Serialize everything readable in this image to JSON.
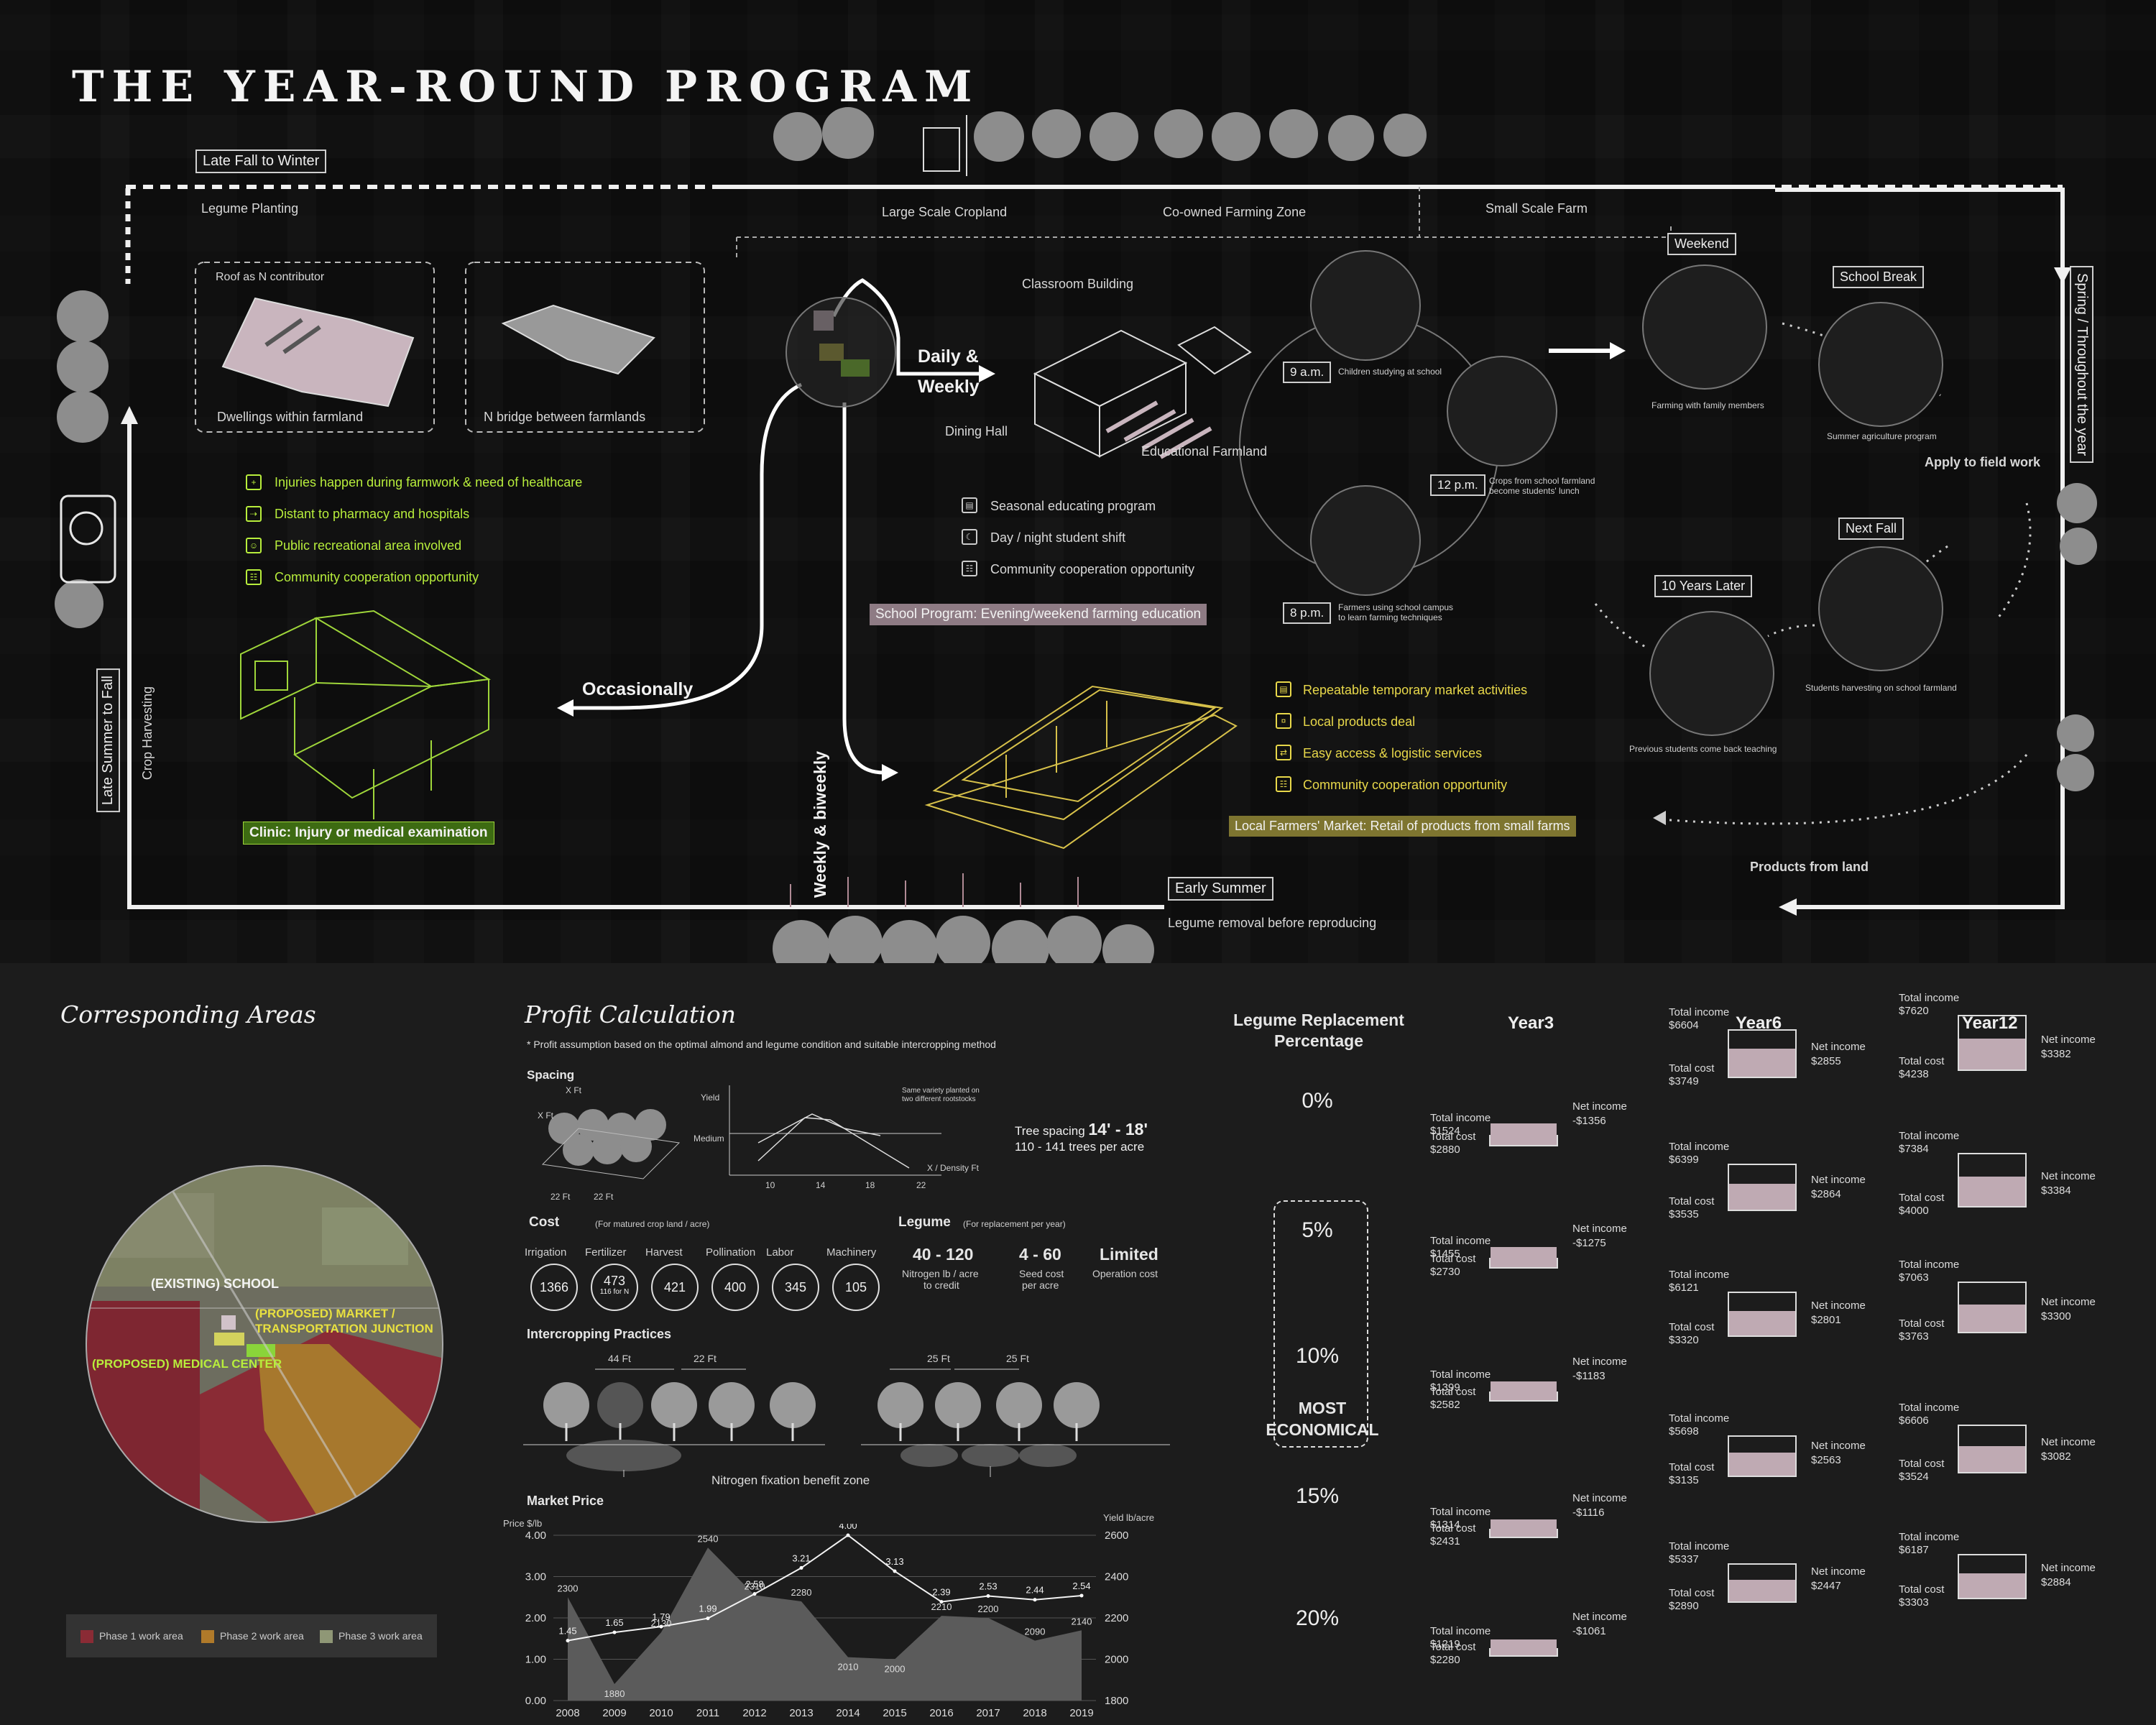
{
  "title": "THE YEAR-ROUND PROGRAM",
  "cycle": {
    "late_fall": "Late Fall to Winter",
    "legume_planting": "Legume Planting",
    "large_cropland": "Large Scale Cropland",
    "coowned": "Co-owned Farming Zone",
    "small_farm": "Small Scale Farm",
    "spring": "Spring / Throughout the year",
    "late_summer": "Late Summer to Fall",
    "crop_harvesting": "Crop Harvesting",
    "early_summer": "Early Summer",
    "legume_removal": "Legume removal before reproducing"
  },
  "roof": {
    "roof_n": "Roof as N contributor",
    "dwellings": "Dwellings within farmland",
    "bridge": "N bridge between farmlands"
  },
  "clinic": {
    "items": [
      "Injuries happen during farmwork & need of healthcare",
      "Distant to pharmacy and hospitals",
      "Public recreational area involved",
      "Community cooperation opportunity"
    ],
    "label": "Clinic: Injury or medical examination"
  },
  "hub": {
    "daily": "Daily &",
    "weekly": "Weekly",
    "occasionally": "Occasionally",
    "biweekly": "Weekly & biweekly"
  },
  "school": {
    "classroom": "Classroom Building",
    "dining": "Dining Hall",
    "edu_farm": "Educational Farmland",
    "items": [
      "Seasonal educating program",
      "Day / night student shift",
      "Community cooperation opportunity"
    ],
    "label": "School Program: Evening/weekend farming education"
  },
  "timeline": {
    "t9": "9 a.m.",
    "t9_desc": "Children studying at school",
    "t12": "12 p.m.",
    "t12_desc1": "Crops from school farmland",
    "t12_desc2": "become students' lunch",
    "t8": "8 p.m.",
    "t8_desc1": "Farmers using school campus",
    "t8_desc2": "to learn farming techniques"
  },
  "seasons": {
    "weekend": "Weekend",
    "weekend_desc": "Farming with family members",
    "school_break": "School Break",
    "school_break_desc": "Summer agriculture program",
    "apply": "Apply to field work",
    "next_fall": "Next Fall",
    "next_fall_desc": "Students harvesting on school farmland",
    "ten_years": "10 Years Later",
    "ten_years_desc": "Previous students come back teaching",
    "products": "Products from land"
  },
  "market": {
    "items": [
      "Repeatable temporary market activities",
      "Local products deal",
      "Easy access & logistic services",
      "Community cooperation opportunity"
    ],
    "label": "Local Farmers' Market: Retail of products from small farms"
  },
  "areas": {
    "title": "Corresponding Areas",
    "school": "(EXISTING) SCHOOL",
    "market1": "(PROPOSED) MARKET /",
    "market2": "TRANSPORTATION JUNCTION",
    "medical": "(PROPOSED) MEDICAL CENTER",
    "phases": [
      "Phase 1 work area",
      "Phase 2 work area",
      "Phase 3 work area"
    ],
    "phase_colors": [
      "#8a2b35",
      "#b07a2a",
      "#8f9776"
    ]
  },
  "profit": {
    "title": "Profit Calculation",
    "note": "* Profit assumption based on the optimal almond and legume condition and suitable intercropping method",
    "spacing": "Spacing",
    "xft": "X Ft",
    "ft22": "22 Ft",
    "yield": "Yield",
    "medium": "Medium",
    "same_variety1": "Same variety planted on",
    "same_variety2": "two different rootstocks",
    "xdensity": "X / Density   Ft",
    "xticks": [
      "10",
      "14",
      "18",
      "22"
    ],
    "tree_spacing_label": "Tree spacing",
    "tree_spacing_value": "14' - 18'",
    "trees_per_acre": "110 - 141 trees per acre",
    "cost": "Cost",
    "cost_note": "(For matured crop land / acre)",
    "cost_items": [
      {
        "name": "Irrigation",
        "value": "1366",
        "sub": ""
      },
      {
        "name": "Fertilizer",
        "value": "473",
        "sub": "116 for N"
      },
      {
        "name": "Harvest",
        "value": "421",
        "sub": ""
      },
      {
        "name": "Pollination",
        "value": "400",
        "sub": ""
      },
      {
        "name": "Labor",
        "value": "345",
        "sub": ""
      },
      {
        "name": "Machinery",
        "value": "105",
        "sub": ""
      }
    ],
    "legume": "Legume",
    "legume_note": "(For replacement per year)",
    "legume_items": [
      {
        "value": "40 - 120",
        "desc1": "Nitrogen lb / acre",
        "desc2": "to credit"
      },
      {
        "value": "4 - 60",
        "desc1": "Seed cost",
        "desc2": "per acre"
      },
      {
        "value": "Limited",
        "desc1": "Operation cost",
        "desc2": ""
      }
    ],
    "intercropping": "Intercropping Practices",
    "ft44": "44 Ft",
    "ft22b": "22 Ft",
    "ft25a": "25 Ft",
    "ft25b": "25 Ft",
    "nitrogen_zone": "Nitrogen fixation benefit zone",
    "market_price": "Market Price"
  },
  "chart_data": {
    "type": "area",
    "title": "Market Price",
    "x": [
      "2008",
      "2009",
      "2010",
      "2011",
      "2012",
      "2013",
      "2014",
      "2015",
      "2016",
      "2017",
      "2018",
      "2019"
    ],
    "ylabel": "Price $/lb",
    "y2label": "Yield lb/acre",
    "ylim": [
      0,
      4
    ],
    "y2lim": [
      1800,
      2600
    ],
    "yticks": [
      "4.00",
      "3.00",
      "2.00",
      "1.00",
      "0.00"
    ],
    "y2ticks": [
      "2600",
      "2400",
      "2200",
      "2000",
      "1800"
    ],
    "series": [
      {
        "values": [
          1.45,
          1.65,
          1.79,
          1.99,
          2.58,
          3.21,
          4.0,
          3.13,
          2.39,
          2.53,
          2.44,
          2.54
        ],
        "labels": [
          "1.45",
          "1.65",
          "1.79",
          "1.99",
          "2.58",
          "3.21",
          "4.00",
          "3.13",
          "2.39",
          "2.53",
          "2.44",
          "2.54"
        ]
      },
      {
        "values": [
          2300,
          1880,
          2130,
          2540,
          2310,
          2280,
          2010,
          2000,
          2210,
          2200,
          2090,
          2140
        ],
        "labels": [
          "2300",
          "1880",
          "2130",
          "2540",
          "2310",
          "2280",
          "2010",
          "2000",
          "2210",
          "2200",
          "2090",
          "2140"
        ]
      }
    ]
  },
  "replacement": {
    "header1": "Legume Replacement",
    "header2": "Percentage",
    "years": [
      "Year3",
      "Year6",
      "Year12"
    ],
    "percents": [
      "0%",
      "5%",
      "10%",
      "15%",
      "20%"
    ],
    "most1": "MOST",
    "most2": "ECONOMICAL",
    "total_income": "Total income",
    "total_cost": "Total cost",
    "net_income": "Net income",
    "rows": [
      [
        {
          "ti": "$1524",
          "tc": "$2880",
          "ni": "-$1356"
        },
        {
          "ti": "$6604",
          "tc": "$3749",
          "ni": "$2855"
        },
        {
          "ti": "$7620",
          "tc": "$4238",
          "ni": "$3382"
        }
      ],
      [
        {
          "ti": "$1455",
          "tc": "$2730",
          "ni": "-$1275"
        },
        {
          "ti": "$6399",
          "tc": "$3535",
          "ni": "$2864"
        },
        {
          "ti": "$7384",
          "tc": "$4000",
          "ni": "$3384"
        }
      ],
      [
        {
          "ti": "$1399",
          "tc": "$2582",
          "ni": "-$1183"
        },
        {
          "ti": "$6121",
          "tc": "$3320",
          "ni": "$2801"
        },
        {
          "ti": "$7063",
          "tc": "$3763",
          "ni": "$3300"
        }
      ],
      [
        {
          "ti": "$1314",
          "tc": "$2431",
          "ni": "-$1116"
        },
        {
          "ti": "$5698",
          "tc": "$3135",
          "ni": "$2563"
        },
        {
          "ti": "$6606",
          "tc": "$3524",
          "ni": "$3082"
        }
      ],
      [
        {
          "ti": "$1219",
          "tc": "$2280",
          "ni": "-$1061"
        },
        {
          "ti": "$5337",
          "tc": "$2890",
          "ni": "$2447"
        },
        {
          "ti": "$6187",
          "tc": "$3303",
          "ni": "$2884"
        }
      ]
    ]
  }
}
